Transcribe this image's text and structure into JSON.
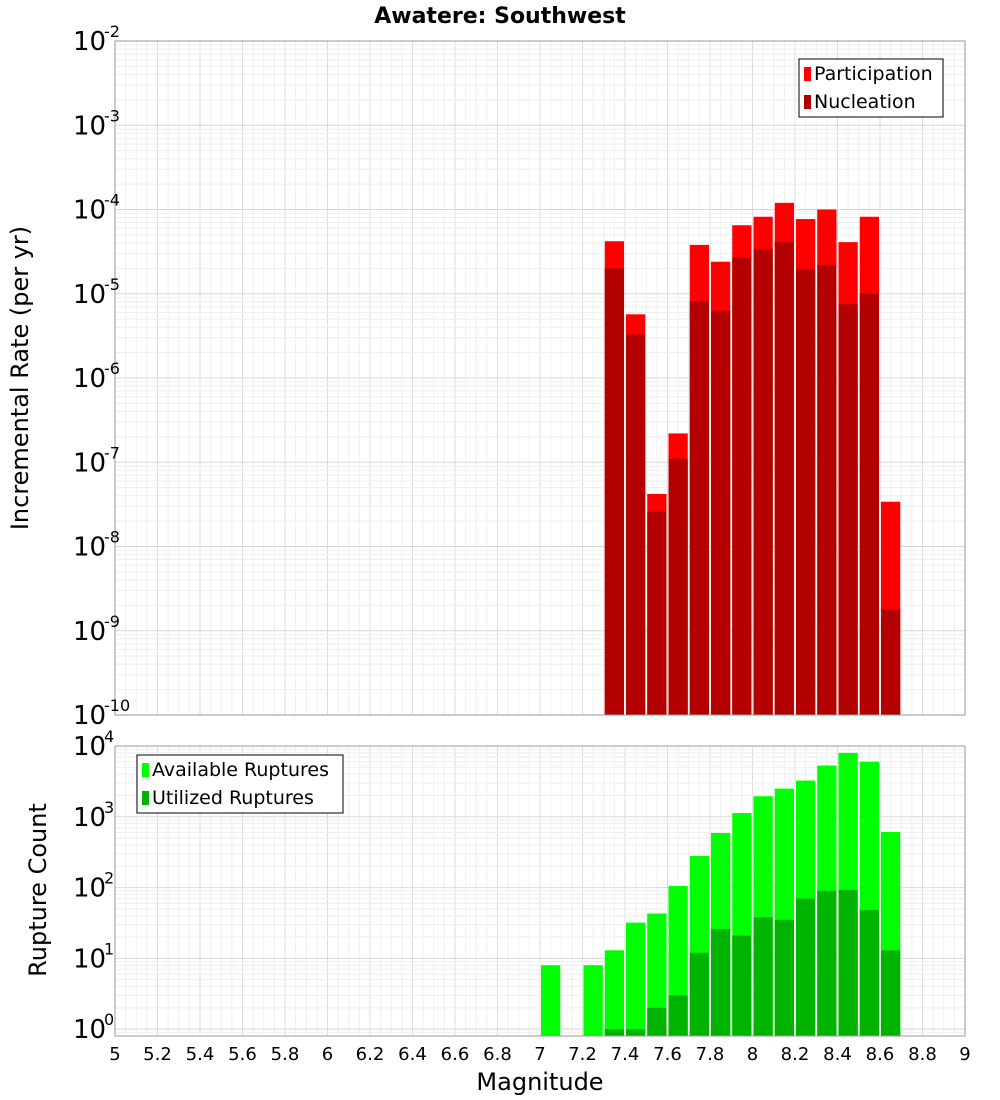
{
  "chart_data": [
    {
      "type": "bar",
      "title": "Awatere: Southwest",
      "xlabel": "",
      "ylabel": "Incremental Rate (per yr)",
      "y_scale": "log",
      "ylim": [
        1e-10,
        0.01
      ],
      "xlim": [
        5,
        9
      ],
      "bar_width": 0.1,
      "grid": true,
      "legend_position": "top-right",
      "y_ticks": [
        {
          "base": "10",
          "exp": "-10",
          "value": 1e-10
        },
        {
          "base": "10",
          "exp": "-9",
          "value": 1e-09
        },
        {
          "base": "10",
          "exp": "-8",
          "value": 1e-08
        },
        {
          "base": "10",
          "exp": "-7",
          "value": 1e-07
        },
        {
          "base": "10",
          "exp": "-6",
          "value": 1e-06
        },
        {
          "base": "10",
          "exp": "-5",
          "value": 1e-05
        },
        {
          "base": "10",
          "exp": "-4",
          "value": 0.0001
        },
        {
          "base": "10",
          "exp": "-3",
          "value": 0.001
        },
        {
          "base": "10",
          "exp": "-2",
          "value": 0.01
        }
      ],
      "series": [
        {
          "name": "Participation",
          "color": "#ff0000",
          "points": [
            {
              "x": 7.35,
              "y": 4.2e-05
            },
            {
              "x": 7.45,
              "y": 5.7e-06
            },
            {
              "x": 7.55,
              "y": 4.2e-08
            },
            {
              "x": 7.65,
              "y": 2.2e-07
            },
            {
              "x": 7.75,
              "y": 3.8e-05
            },
            {
              "x": 7.85,
              "y": 2.4e-05
            },
            {
              "x": 7.95,
              "y": 6.5e-05
            },
            {
              "x": 8.05,
              "y": 8.2e-05
            },
            {
              "x": 8.15,
              "y": 0.00012
            },
            {
              "x": 8.25,
              "y": 7.7e-05
            },
            {
              "x": 8.35,
              "y": 0.0001
            },
            {
              "x": 8.45,
              "y": 4.1e-05
            },
            {
              "x": 8.55,
              "y": 8.2e-05
            },
            {
              "x": 8.65,
              "y": 3.4e-08
            }
          ]
        },
        {
          "name": "Nucleation",
          "color": "#b30000",
          "points": [
            {
              "x": 7.35,
              "y": 2e-05
            },
            {
              "x": 7.45,
              "y": 3.3e-06
            },
            {
              "x": 7.55,
              "y": 2.6e-08
            },
            {
              "x": 7.65,
              "y": 1.1e-07
            },
            {
              "x": 7.75,
              "y": 8.2e-06
            },
            {
              "x": 7.85,
              "y": 6.3e-06
            },
            {
              "x": 7.95,
              "y": 2.7e-05
            },
            {
              "x": 8.05,
              "y": 3.4e-05
            },
            {
              "x": 8.15,
              "y": 4.1e-05
            },
            {
              "x": 8.25,
              "y": 1.95e-05
            },
            {
              "x": 8.35,
              "y": 2.2e-05
            },
            {
              "x": 8.45,
              "y": 7.5e-06
            },
            {
              "x": 8.55,
              "y": 1e-05
            },
            {
              "x": 8.65,
              "y": 1.8e-09
            }
          ]
        }
      ]
    },
    {
      "type": "bar",
      "title": "",
      "xlabel": "Magnitude",
      "ylabel": "Rupture Count",
      "y_scale": "log",
      "ylim": [
        0.8,
        10000
      ],
      "xlim": [
        5,
        9
      ],
      "bar_width": 0.1,
      "grid": true,
      "legend_position": "top-left",
      "x_ticks": [
        "5",
        "5.2",
        "5.4",
        "5.6",
        "5.8",
        "6",
        "6.2",
        "6.4",
        "6.6",
        "6.8",
        "7",
        "7.2",
        "7.4",
        "7.6",
        "7.8",
        "8",
        "8.2",
        "8.4",
        "8.6",
        "8.8",
        "9"
      ],
      "y_ticks": [
        {
          "base": "10",
          "exp": "0",
          "value": 1
        },
        {
          "base": "10",
          "exp": "1",
          "value": 10
        },
        {
          "base": "10",
          "exp": "2",
          "value": 100
        },
        {
          "base": "10",
          "exp": "3",
          "value": 1000
        },
        {
          "base": "10",
          "exp": "4",
          "value": 10000
        }
      ],
      "series": [
        {
          "name": "Available Ruptures",
          "color": "#00ff00",
          "points": [
            {
              "x": 7.05,
              "y": 8
            },
            {
              "x": 7.25,
              "y": 8
            },
            {
              "x": 7.35,
              "y": 13
            },
            {
              "x": 7.45,
              "y": 32
            },
            {
              "x": 7.55,
              "y": 43
            },
            {
              "x": 7.65,
              "y": 105
            },
            {
              "x": 7.75,
              "y": 280
            },
            {
              "x": 7.85,
              "y": 590
            },
            {
              "x": 7.95,
              "y": 1130
            },
            {
              "x": 8.05,
              "y": 1950
            },
            {
              "x": 8.15,
              "y": 2500
            },
            {
              "x": 8.25,
              "y": 3250
            },
            {
              "x": 8.35,
              "y": 5300
            },
            {
              "x": 8.45,
              "y": 8000
            },
            {
              "x": 8.55,
              "y": 6000
            },
            {
              "x": 8.65,
              "y": 610
            }
          ]
        },
        {
          "name": "Utilized Ruptures",
          "color": "#00b300",
          "points": [
            {
              "x": 7.35,
              "y": 1
            },
            {
              "x": 7.45,
              "y": 1
            },
            {
              "x": 7.55,
              "y": 2
            },
            {
              "x": 7.65,
              "y": 3
            },
            {
              "x": 7.75,
              "y": 12
            },
            {
              "x": 7.85,
              "y": 26
            },
            {
              "x": 7.95,
              "y": 21
            },
            {
              "x": 8.05,
              "y": 38
            },
            {
              "x": 8.15,
              "y": 35
            },
            {
              "x": 8.25,
              "y": 70
            },
            {
              "x": 8.35,
              "y": 90
            },
            {
              "x": 8.45,
              "y": 93
            },
            {
              "x": 8.55,
              "y": 48
            },
            {
              "x": 8.65,
              "y": 13
            }
          ]
        }
      ]
    }
  ]
}
